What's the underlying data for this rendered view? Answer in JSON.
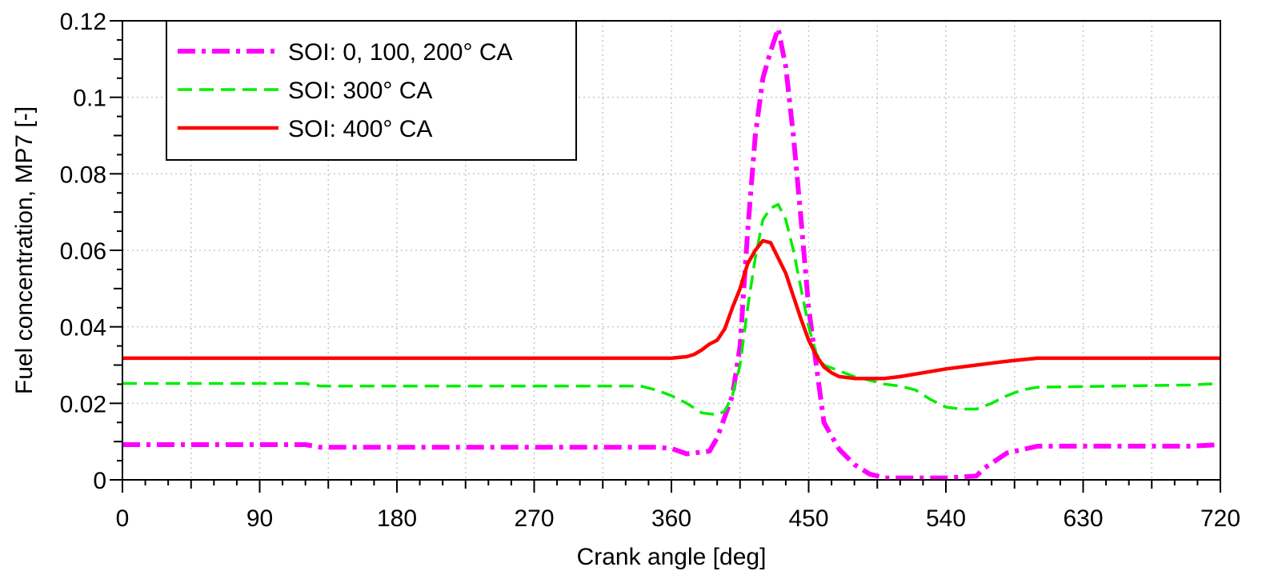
{
  "chart_data": {
    "type": "line",
    "xlabel": "Crank angle [deg]",
    "ylabel": "Fuel concentration, MP7 [-]",
    "xlim": [
      0,
      720
    ],
    "ylim": [
      0,
      0.12
    ],
    "x_ticks": [
      0,
      90,
      180,
      270,
      360,
      450,
      540,
      630,
      720
    ],
    "x_tick_labels": [
      "0",
      "90",
      "180",
      "270",
      "360",
      "450",
      "540",
      "630",
      "720"
    ],
    "y_ticks": [
      0,
      0.02,
      0.04,
      0.06,
      0.08,
      0.1,
      0.12
    ],
    "y_tick_labels": [
      "0",
      "0.02",
      "0.04",
      "0.06",
      "0.08",
      "0.1",
      "0.12"
    ],
    "grid": true,
    "legend_position": "top-left",
    "series": [
      {
        "name": "SOI: 0, 100, 200° CA",
        "color": "#ff00ff",
        "style": "dashdot",
        "x": [
          0,
          120,
          130,
          350,
          360,
          370,
          385,
          390,
          400,
          405,
          410,
          415,
          420,
          425,
          430,
          435,
          440,
          445,
          450,
          455,
          460,
          470,
          480,
          490,
          500,
          510,
          540,
          560,
          565,
          580,
          600,
          700,
          720
        ],
        "y": [
          0.0092,
          0.0092,
          0.0085,
          0.0085,
          0.0082,
          0.0068,
          0.0075,
          0.011,
          0.022,
          0.035,
          0.065,
          0.09,
          0.105,
          0.112,
          0.118,
          0.108,
          0.09,
          0.068,
          0.045,
          0.03,
          0.015,
          0.008,
          0.004,
          0.0015,
          0.0005,
          0.0005,
          0.0005,
          0.001,
          0.003,
          0.007,
          0.0088,
          0.0088,
          0.0092
        ]
      },
      {
        "name": "SOI: 300° CA",
        "color": "#00ee00",
        "style": "dashed",
        "x": [
          0,
          120,
          130,
          340,
          350,
          360,
          370,
          380,
          390,
          395,
          400,
          405,
          410,
          415,
          420,
          425,
          430,
          435,
          440,
          445,
          450,
          455,
          460,
          470,
          480,
          490,
          500,
          510,
          520,
          530,
          540,
          550,
          560,
          570,
          580,
          590,
          600,
          700,
          720
        ],
        "y": [
          0.0252,
          0.0252,
          0.0245,
          0.0245,
          0.0235,
          0.022,
          0.02,
          0.0175,
          0.017,
          0.018,
          0.022,
          0.03,
          0.045,
          0.058,
          0.068,
          0.071,
          0.072,
          0.068,
          0.06,
          0.05,
          0.04,
          0.033,
          0.03,
          0.0285,
          0.027,
          0.026,
          0.025,
          0.0245,
          0.0235,
          0.021,
          0.019,
          0.0185,
          0.0185,
          0.02,
          0.022,
          0.0235,
          0.0242,
          0.0248,
          0.0252
        ]
      },
      {
        "name": "SOI: 400° CA",
        "color": "#ff0000",
        "style": "solid",
        "x": [
          0,
          360,
          365,
          370,
          375,
          380,
          385,
          390,
          395,
          400,
          405,
          410,
          415,
          420,
          425,
          430,
          435,
          440,
          445,
          450,
          455,
          460,
          465,
          470,
          480,
          490,
          500,
          510,
          540,
          560,
          580,
          600,
          720
        ],
        "y": [
          0.0318,
          0.0318,
          0.032,
          0.0322,
          0.0328,
          0.034,
          0.0355,
          0.0365,
          0.0395,
          0.045,
          0.05,
          0.0565,
          0.06,
          0.0625,
          0.062,
          0.058,
          0.054,
          0.048,
          0.042,
          0.0365,
          0.0325,
          0.0295,
          0.028,
          0.027,
          0.0265,
          0.0265,
          0.0265,
          0.027,
          0.029,
          0.03,
          0.031,
          0.0318,
          0.0318
        ]
      }
    ]
  }
}
